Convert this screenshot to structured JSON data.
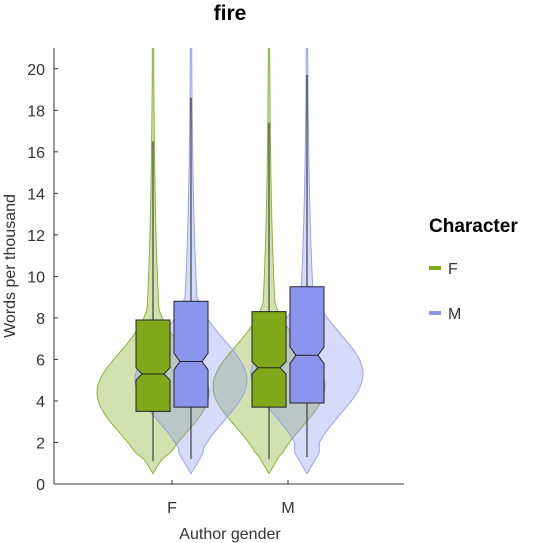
{
  "chart_data": {
    "type": "violin",
    "title": "fire",
    "xlabel": "Author gender",
    "ylabel": "Words per thousand",
    "categories": [
      "F",
      "M"
    ],
    "ylim": [
      0,
      21
    ],
    "yticks": [
      0,
      2,
      4,
      6,
      8,
      10,
      12,
      14,
      16,
      18,
      20
    ],
    "grid": false,
    "legend": {
      "title": "Character",
      "position": "right",
      "entries": [
        {
          "label": "F",
          "color": "#7fa81a"
        },
        {
          "label": "M",
          "color": "#8c95ee"
        }
      ]
    },
    "series": [
      {
        "name": "F",
        "color": "#7fa81a",
        "groups": [
          {
            "category": "F",
            "whisker_low": 1.1,
            "q1": 3.5,
            "median": 5.3,
            "q3": 7.9,
            "whisker_high": 16.5,
            "notch_low": 5.0,
            "notch_high": 5.6,
            "violin_min": 0.5,
            "violin_max": 21
          },
          {
            "category": "M",
            "whisker_low": 1.2,
            "q1": 3.7,
            "median": 5.6,
            "q3": 8.3,
            "whisker_high": 17.4,
            "notch_low": 5.3,
            "notch_high": 5.9,
            "violin_min": 0.5,
            "violin_max": 21
          }
        ]
      },
      {
        "name": "M",
        "color": "#8c95ee",
        "groups": [
          {
            "category": "F",
            "whisker_low": 1.2,
            "q1": 3.7,
            "median": 5.9,
            "q3": 8.8,
            "whisker_high": 18.6,
            "notch_low": 5.5,
            "notch_high": 6.3,
            "violin_min": 0.5,
            "violin_max": 21
          },
          {
            "category": "M",
            "whisker_low": 1.3,
            "q1": 3.9,
            "median": 6.2,
            "q3": 9.5,
            "whisker_high": 19.7,
            "notch_low": 5.8,
            "notch_high": 6.6,
            "violin_min": 0.5,
            "violin_max": 21
          }
        ]
      }
    ]
  }
}
